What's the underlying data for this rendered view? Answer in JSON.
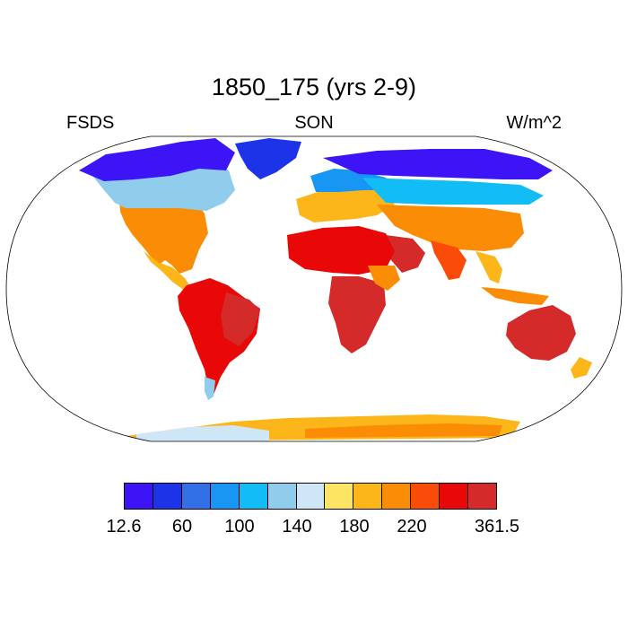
{
  "title": "1850_175 (yrs 2-9)",
  "left_label": "FSDS",
  "center_label": "SON",
  "right_label": "W/m^2",
  "colorbar": {
    "colors": [
      "#3c14f5",
      "#1d33e8",
      "#3170e6",
      "#1796f4",
      "#12bdf6",
      "#90cdec",
      "#cfe6f7",
      "#fde564",
      "#fdb619",
      "#fb8d06",
      "#fb4b08",
      "#e80808",
      "#d42a2a"
    ],
    "labels": [
      "12.6",
      "60",
      "100",
      "140",
      "180",
      "220",
      "361.5"
    ]
  },
  "map": {
    "projection": "robinson",
    "ocean_color": "#ffffff",
    "coastline_color": "#000000"
  }
}
